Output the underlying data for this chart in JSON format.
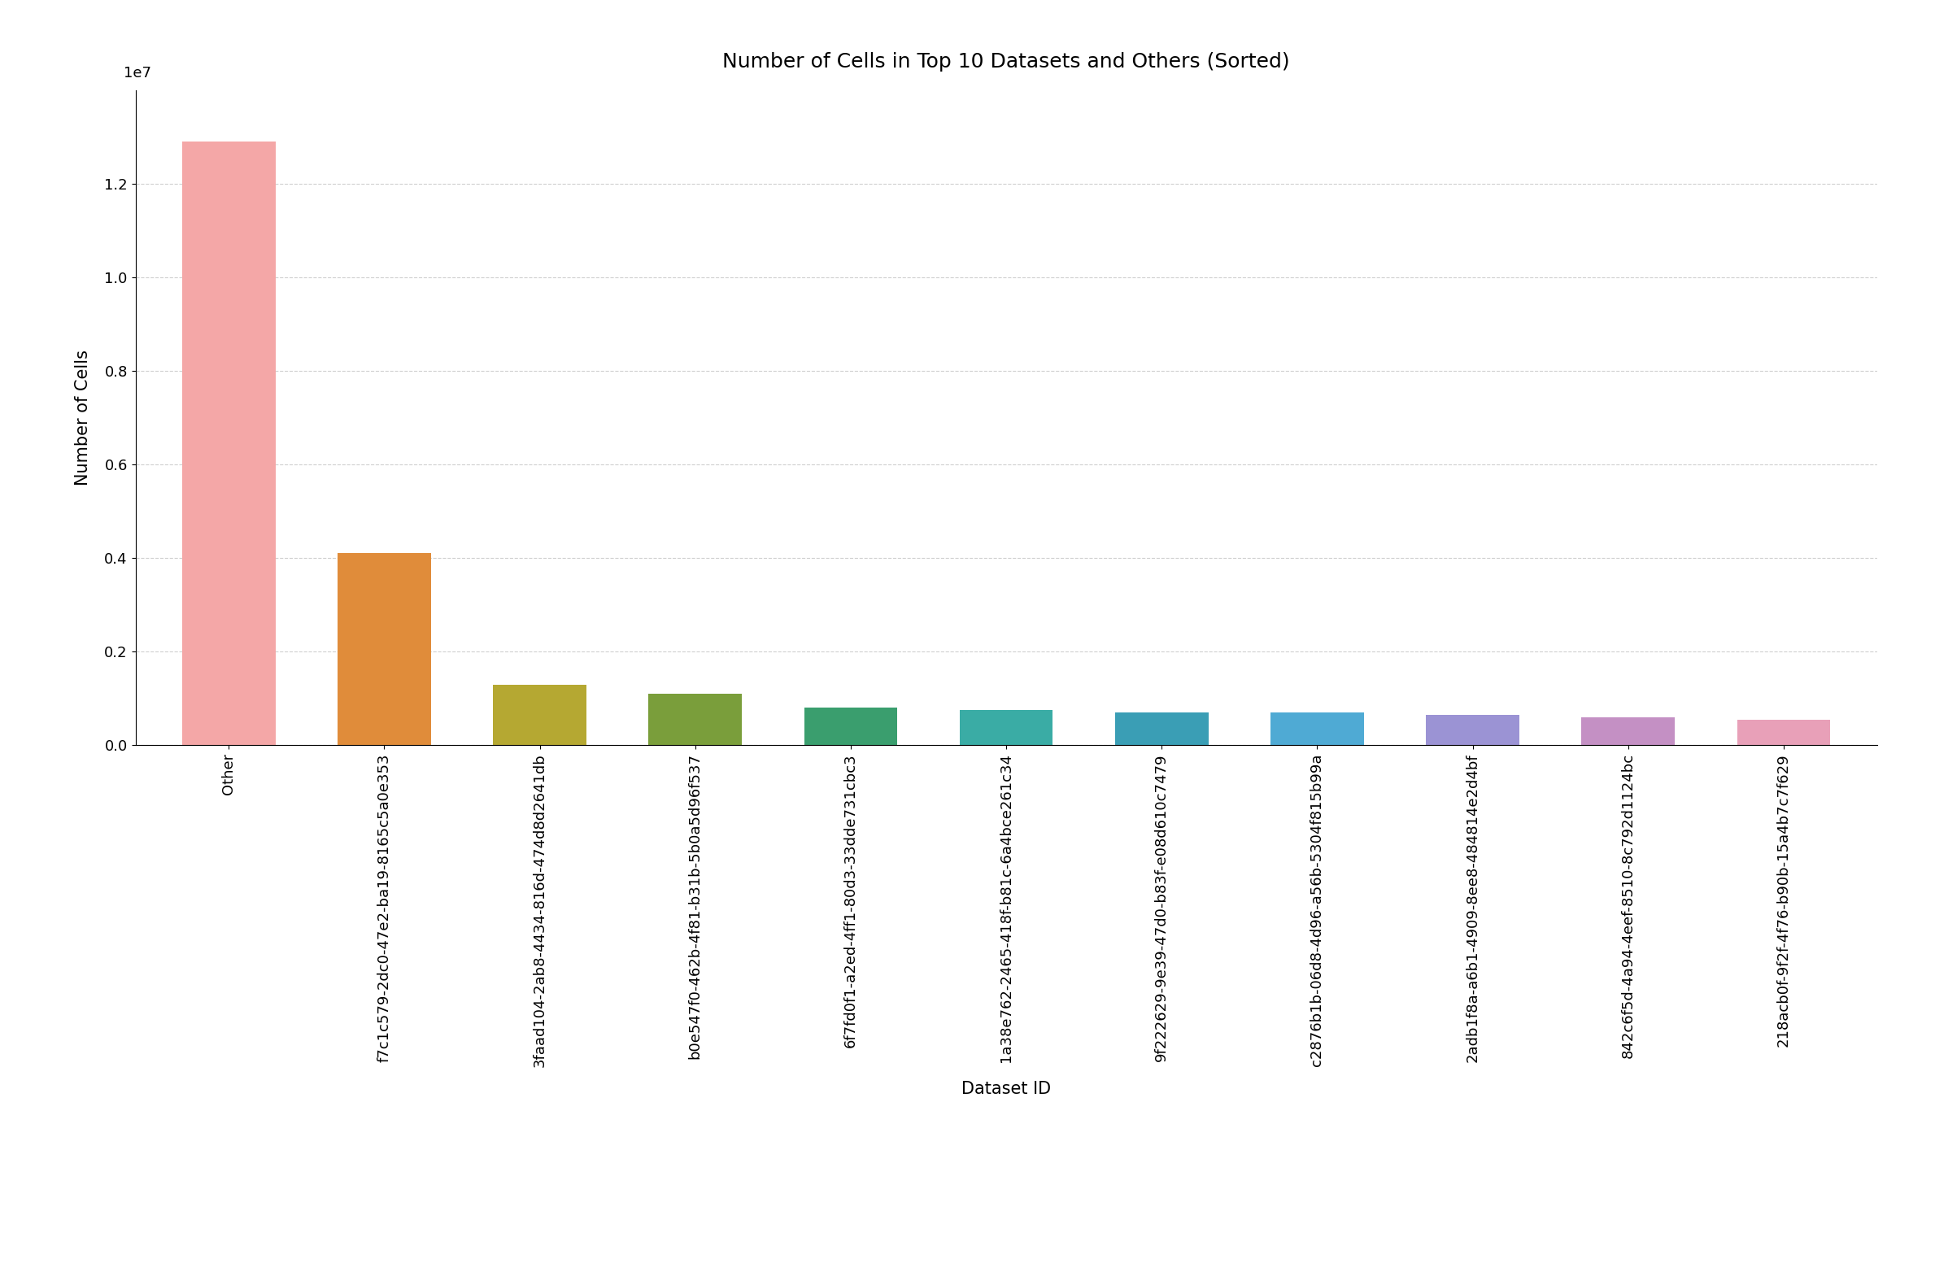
{
  "categories": [
    "Other",
    "f7c1c579-2dc0-47e2-ba19-8165c5a0e353",
    "3faad104-2ab8-4434-816d-474d8d2641db",
    "b0e547f0-462b-4f81-b31b-5b0a5d96f537",
    "6f7fd0f1-a2ed-4ff1-80d3-33dde731cbc3",
    "1a38e762-2465-418f-b81c-6a4bce261c34",
    "9f222629-9e39-47d0-b83f-e08d610c7479",
    "c2876b1b-06d8-4d96-a56b-5304f815b99a",
    "2adb1f8a-a6b1-4909-8ee8-484814e2d4bf",
    "842c6f5d-4a94-4eef-8510-8c792d1124bc",
    "218acb0f-9f2f-4f76-b90b-15a4b7c7f629"
  ],
  "values": [
    12900000,
    4100000,
    1300000,
    1100000,
    800000,
    750000,
    700000,
    700000,
    650000,
    600000,
    550000
  ],
  "colors": [
    "#f4a7a7",
    "#e08c3a",
    "#b5a832",
    "#7a9e3b",
    "#3a9e6e",
    "#3aaca5",
    "#3a9eb5",
    "#4faad4",
    "#9b93d4",
    "#c490c4",
    "#e8a0b8"
  ],
  "title": "Number of Cells in Top 10 Datasets and Others (Sorted)",
  "xlabel": "Dataset ID",
  "ylabel": "Number of Cells",
  "ylim": [
    0,
    14000000
  ],
  "yticks": [
    0,
    2000000,
    4000000,
    6000000,
    8000000,
    10000000,
    12000000
  ],
  "ytick_labels": [
    "0.0",
    "0.2",
    "0.4",
    "0.6",
    "0.8",
    "1.0",
    "1.2"
  ],
  "title_fontsize": 18,
  "label_fontsize": 15,
  "tick_fontsize": 13,
  "background_color": "#ffffff",
  "grid_color": "#bbbbbb",
  "exponent_label": "1e7"
}
